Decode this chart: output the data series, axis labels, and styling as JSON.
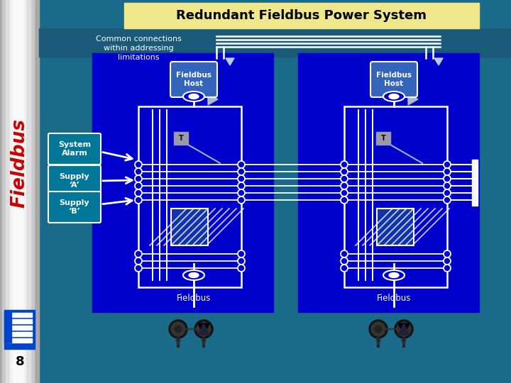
{
  "title": "Redundant Fieldbus Power System",
  "title_bg": "#F0E68C",
  "main_bg": "#1A6B8A",
  "blue_bg": "#0000CC",
  "sidebar_bg_left": "#B0B0B0",
  "sidebar_bg_mid": "#E8E8E8",
  "sidebar_bg_right": "#C8C8C8",
  "sidebar_text": "Fieldbus",
  "sidebar_text_color": "#CC0000",
  "page_number": "8",
  "common_connections_text": "Common connections\nwithin addressing\nlimitations",
  "fieldbus_host_text": "Fieldbus\nHost",
  "system_alarm_text": "System\nAlarm",
  "supply_a_text": "Supply\n‘A’",
  "supply_b_text": "Supply\n‘B’",
  "fieldbus_label": "Fieldbus",
  "line_color": "#FFFFFF",
  "label_box_color": "#007799",
  "logo_color": "#0044CC"
}
